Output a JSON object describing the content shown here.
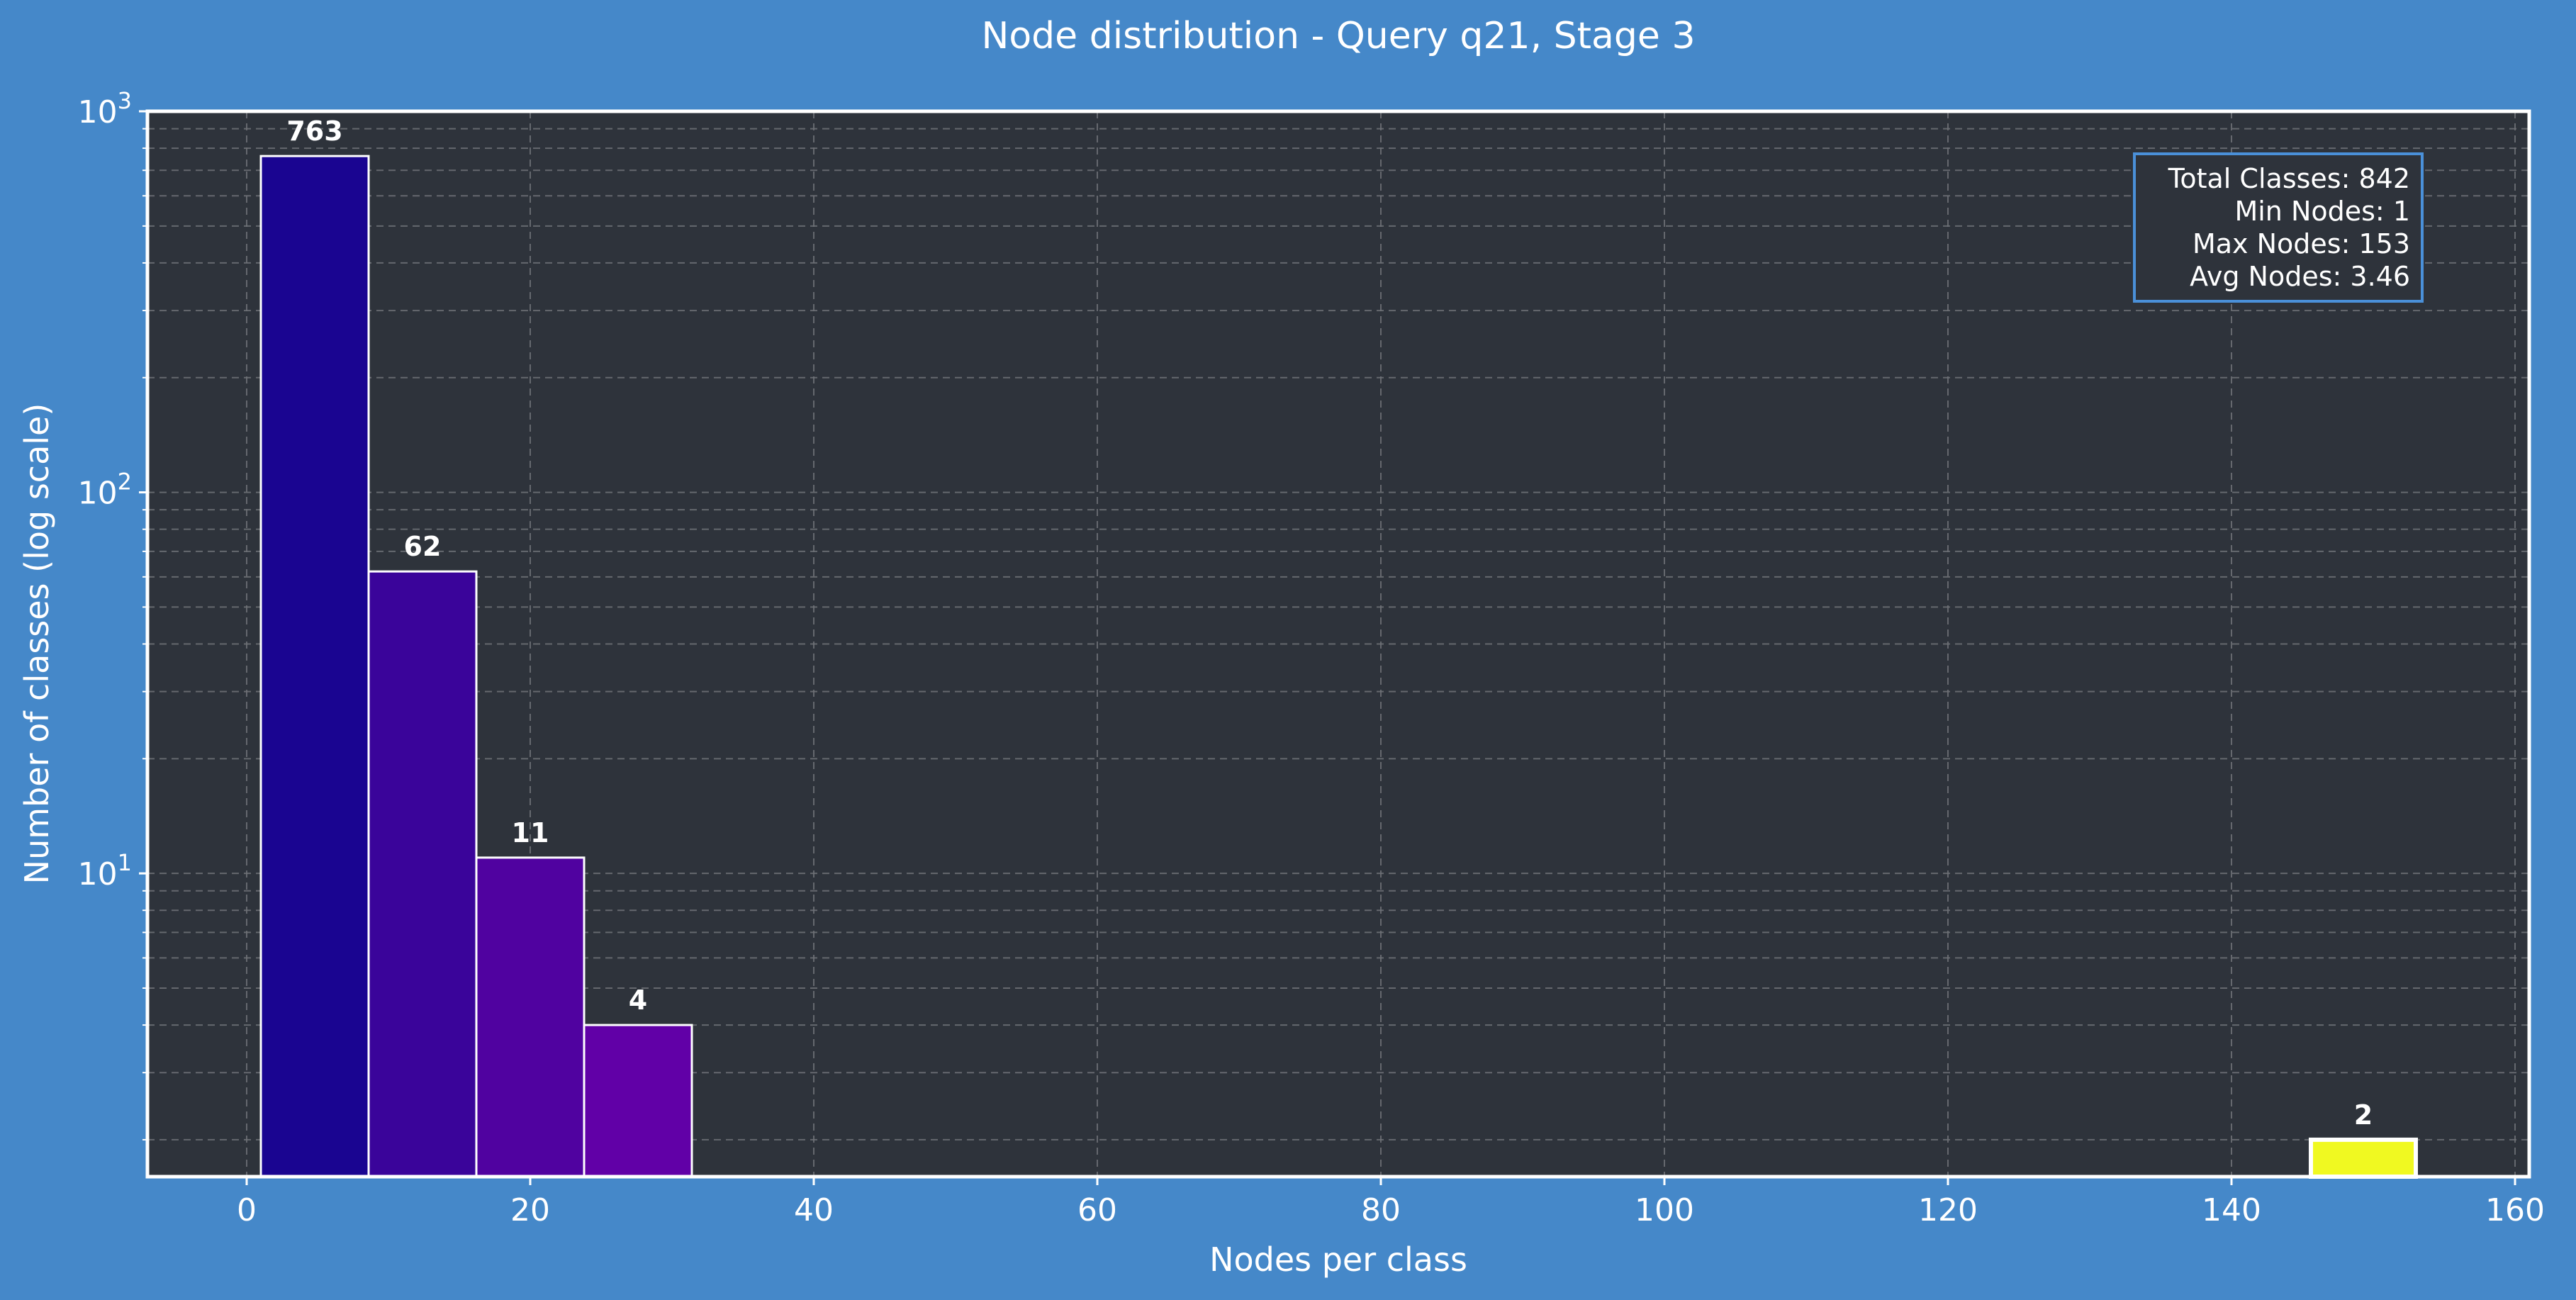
{
  "colors": {
    "figure_bg": "#4588c9",
    "plot_bg": "#2e333b",
    "grid": "#6e7278",
    "text": "#ffffff",
    "bar_edge": "#ffffff",
    "statsbox_edge": "#4a90d9"
  },
  "chart_data": {
    "type": "bar",
    "title": "Node distribution - Query q21, Stage 3",
    "xlabel": "Nodes per class",
    "ylabel": "Number of classes (log scale)",
    "xlim": [
      -7,
      161
    ],
    "ylim": [
      1.6,
      1000
    ],
    "yscale": "log",
    "xticks": [
      0,
      20,
      40,
      60,
      80,
      100,
      120,
      140,
      160
    ],
    "yticks": [
      {
        "value": 10,
        "base": "10",
        "exp": "1"
      },
      {
        "value": 100,
        "base": "10",
        "exp": "2"
      },
      {
        "value": 1000,
        "base": "10",
        "exp": "3"
      }
    ],
    "grid": true,
    "bars": [
      {
        "x0": 1.0,
        "x1": 8.6,
        "value": 763,
        "label": "763",
        "color": "#1a0591"
      },
      {
        "x0": 8.6,
        "x1": 16.2,
        "value": 62,
        "label": "62",
        "color": "#3a049a"
      },
      {
        "x0": 16.2,
        "x1": 23.8,
        "value": 11,
        "label": "11",
        "color": "#5002a0"
      },
      {
        "x0": 23.8,
        "x1": 31.4,
        "value": 4,
        "label": "4",
        "color": "#6100a7"
      },
      {
        "x0": 145.6,
        "x1": 153.0,
        "value": 2,
        "label": "2",
        "color": "#f0f921"
      }
    ],
    "stats": [
      "Total Classes: 842",
      "Min Nodes: 1",
      "Max Nodes: 153",
      "Avg Nodes: 3.46"
    ]
  }
}
